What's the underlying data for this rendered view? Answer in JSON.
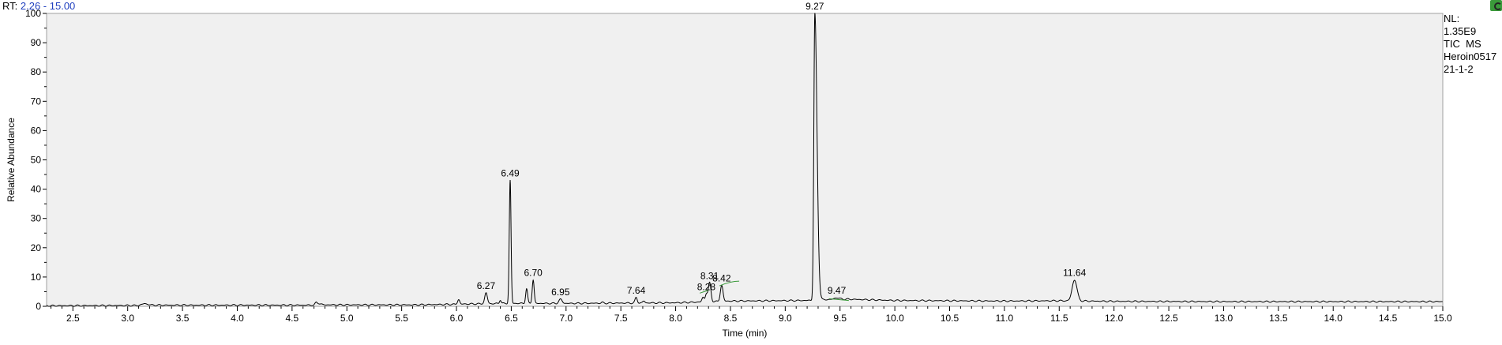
{
  "header": {
    "rt_prefix": "RT:",
    "rt_range": "2.26 - 15.00"
  },
  "info": {
    "nl_label": "NL:",
    "nl_value": "1.35E9",
    "scan": "TIC  MS",
    "sample": "Heroin0517",
    "sample_id": "21-1-2"
  },
  "chart_data": {
    "type": "line",
    "xlabel": "Time (min)",
    "ylabel": "Relative Abundance",
    "xlim": [
      2.26,
      15.0
    ],
    "ylim": [
      0,
      100
    ],
    "x_ticks": [
      "2.5",
      "3.0",
      "3.5",
      "4.0",
      "4.5",
      "5.0",
      "5.5",
      "6.0",
      "6.5",
      "7.0",
      "7.5",
      "8.0",
      "8.5",
      "9.0",
      "9.5",
      "10.0",
      "10.5",
      "11.0",
      "11.5",
      "12.0",
      "12.5",
      "13.0",
      "13.5",
      "14.0",
      "14.5",
      "15.0"
    ],
    "y_ticks": [
      "0",
      "10",
      "20",
      "30",
      "40",
      "50",
      "60",
      "70",
      "80",
      "90",
      "100"
    ],
    "baseline": [
      [
        2.26,
        0.2
      ],
      [
        3.1,
        0.3
      ],
      [
        3.15,
        0.9
      ],
      [
        3.22,
        0.4
      ],
      [
        4.7,
        0.4
      ],
      [
        4.72,
        1.2
      ],
      [
        4.78,
        0.5
      ],
      [
        5.6,
        0.5
      ],
      [
        6.0,
        0.7
      ],
      [
        6.1,
        0.8
      ],
      [
        6.3,
        0.9
      ],
      [
        6.5,
        1.0
      ],
      [
        7.0,
        1.0
      ],
      [
        8.0,
        1.2
      ],
      [
        8.5,
        1.8
      ],
      [
        9.2,
        2.0
      ],
      [
        9.5,
        2.5
      ],
      [
        10.0,
        2.0
      ],
      [
        11.0,
        1.8
      ],
      [
        11.5,
        1.9
      ],
      [
        12.0,
        1.7
      ],
      [
        13.0,
        1.6
      ],
      [
        14.0,
        1.6
      ],
      [
        15.0,
        1.6
      ]
    ],
    "peaks": [
      {
        "x": 3.17,
        "y": 0.8,
        "w": 0.03,
        "label": ""
      },
      {
        "x": 4.74,
        "y": 1.1,
        "w": 0.03,
        "label": ""
      },
      {
        "x": 6.02,
        "y": 2.3,
        "w": 0.01,
        "label": ""
      },
      {
        "x": 6.27,
        "y": 4.6,
        "w": 0.012,
        "label": "6.27"
      },
      {
        "x": 6.4,
        "y": 2.2,
        "w": 0.008,
        "label": ""
      },
      {
        "x": 6.49,
        "y": 43.0,
        "w": 0.008,
        "label": "6.49"
      },
      {
        "x": 6.64,
        "y": 6.0,
        "w": 0.009,
        "label": ""
      },
      {
        "x": 6.7,
        "y": 9.0,
        "w": 0.009,
        "label": "6.70"
      },
      {
        "x": 6.95,
        "y": 2.4,
        "w": 0.015,
        "label": "6.95"
      },
      {
        "x": 7.33,
        "y": 1.3,
        "w": 0.01,
        "label": ""
      },
      {
        "x": 7.64,
        "y": 3.0,
        "w": 0.01,
        "label": "7.64"
      },
      {
        "x": 7.71,
        "y": 1.8,
        "w": 0.01,
        "label": ""
      },
      {
        "x": 8.25,
        "y": 3.0,
        "w": 0.01,
        "label": ""
      },
      {
        "x": 8.28,
        "y": 4.2,
        "w": 0.01,
        "label": "8.28"
      },
      {
        "x": 8.31,
        "y": 8.0,
        "w": 0.012,
        "label": "8.31"
      },
      {
        "x": 8.42,
        "y": 7.2,
        "w": 0.012,
        "label": "8.42"
      },
      {
        "x": 9.27,
        "y": 100.0,
        "w": 0.009,
        "label": "9.27"
      },
      {
        "x": 9.47,
        "y": 2.9,
        "w": 0.02,
        "label": "9.47"
      },
      {
        "x": 11.64,
        "y": 9.0,
        "w": 0.022,
        "label": "11.64"
      }
    ]
  },
  "colors": {
    "plot_bg": "#f0f0f0",
    "trace": "#000000",
    "annotation": "#3a9a3a",
    "rt_text": "#1f3fbf"
  }
}
